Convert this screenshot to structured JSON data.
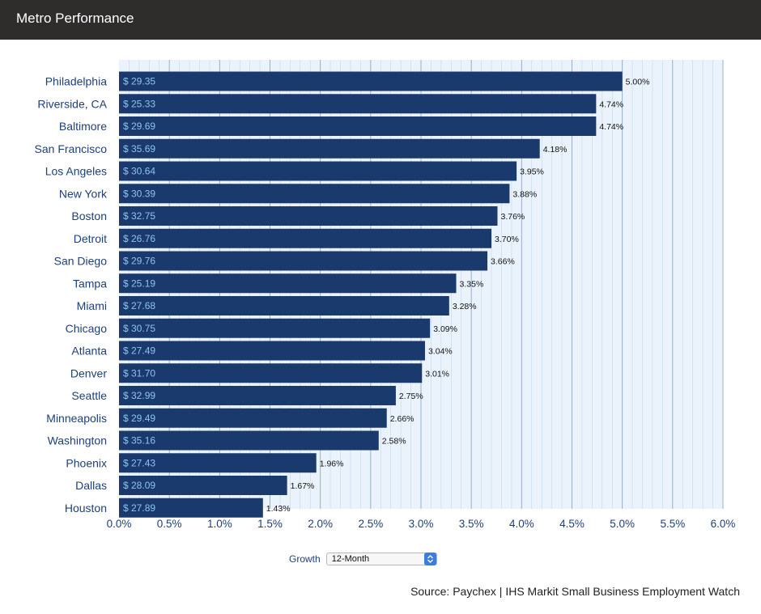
{
  "header": {
    "title": "Metro Performance"
  },
  "controls": {
    "label": "Growth",
    "selected": "12-Month",
    "icon": "chevron-up-down-icon"
  },
  "source": "Source: Paychex | IHS Markit Small Business Employment Watch",
  "colors": {
    "header_bg": "#2f2d2c",
    "bar": "#1a3a6e",
    "bar_label": "#8fc3ee",
    "plot_bg": "#eaf3fc",
    "axis_text": "#1e4078"
  },
  "chart_data": {
    "type": "bar",
    "orientation": "horizontal",
    "title": "",
    "xlabel": "",
    "ylabel": "",
    "xlim": [
      0,
      6
    ],
    "x_ticks": [
      "0.0%",
      "0.5%",
      "1.0%",
      "1.5%",
      "2.0%",
      "2.5%",
      "3.0%",
      "3.5%",
      "4.0%",
      "4.5%",
      "5.0%",
      "5.5%",
      "6.0%"
    ],
    "grid": true,
    "categories": [
      "Philadelphia",
      "Riverside, CA",
      "Baltimore",
      "San Francisco",
      "Los Angeles",
      "New York",
      "Boston",
      "Detroit",
      "San Diego",
      "Tampa",
      "Miami",
      "Chicago",
      "Atlanta",
      "Denver",
      "Seattle",
      "Minneapolis",
      "Washington",
      "Phoenix",
      "Dallas",
      "Houston"
    ],
    "values": [
      5.0,
      4.74,
      4.74,
      4.18,
      3.95,
      3.88,
      3.76,
      3.7,
      3.66,
      3.35,
      3.28,
      3.09,
      3.04,
      3.01,
      2.75,
      2.66,
      2.58,
      1.96,
      1.67,
      1.43
    ],
    "value_labels": [
      "5.00%",
      "4.74%",
      "4.74%",
      "4.18%",
      "3.95%",
      "3.88%",
      "3.76%",
      "3.70%",
      "3.66%",
      "3.35%",
      "3.28%",
      "3.09%",
      "3.04%",
      "3.01%",
      "2.75%",
      "2.66%",
      "2.58%",
      "1.96%",
      "1.67%",
      "1.43%"
    ],
    "bar_labels": [
      "$ 29.35",
      "$ 25.33",
      "$ 29.69",
      "$ 35.69",
      "$ 30.64",
      "$ 30.39",
      "$ 32.75",
      "$ 26.76",
      "$ 29.76",
      "$ 25.19",
      "$ 27.68",
      "$ 30.75",
      "$ 27.49",
      "$ 31.70",
      "$ 32.99",
      "$ 29.49",
      "$ 35.16",
      "$ 27.43",
      "$ 28.09",
      "$ 27.89"
    ]
  }
}
